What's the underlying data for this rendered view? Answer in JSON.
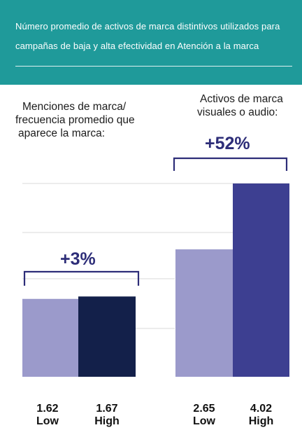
{
  "header": {
    "line1": "Número promedio de activos de marca distintivos utilizados para",
    "line2": "campañas de baja y alta efectividad en Atención a la marca"
  },
  "left_label": {
    "line1": "Menciones de marca/",
    "line2": "frecuencia promedio que",
    "line3": "aparece la marca:"
  },
  "right_label": {
    "line1": "Activos de marca",
    "line2": "visuales o audio:"
  },
  "pct": {
    "left": "+3%",
    "right": "+52%"
  },
  "colors": {
    "header_bg": "#1f9a9a",
    "low": "#9b9acb",
    "high_left": "#13204a",
    "high_right": "#3d3f91",
    "bracket": "#2d2d78"
  },
  "chart_data": {
    "type": "bar",
    "ylim": [
      0,
      4.02
    ],
    "grid": true,
    "groups": [
      {
        "name": "Menciones de marca/ frecuencia promedio que aparece la marca:",
        "change": "+3%",
        "bars": [
          {
            "category": "Low",
            "value": 1.62,
            "value_label": "1.62"
          },
          {
            "category": "High",
            "value": 1.67,
            "value_label": "1.67"
          }
        ]
      },
      {
        "name": "Activos de marca visuales o audio:",
        "change": "+52%",
        "bars": [
          {
            "category": "Low",
            "value": 2.65,
            "value_label": "2.65"
          },
          {
            "category": "High",
            "value": 4.02,
            "value_label": "4.02"
          }
        ]
      }
    ]
  }
}
